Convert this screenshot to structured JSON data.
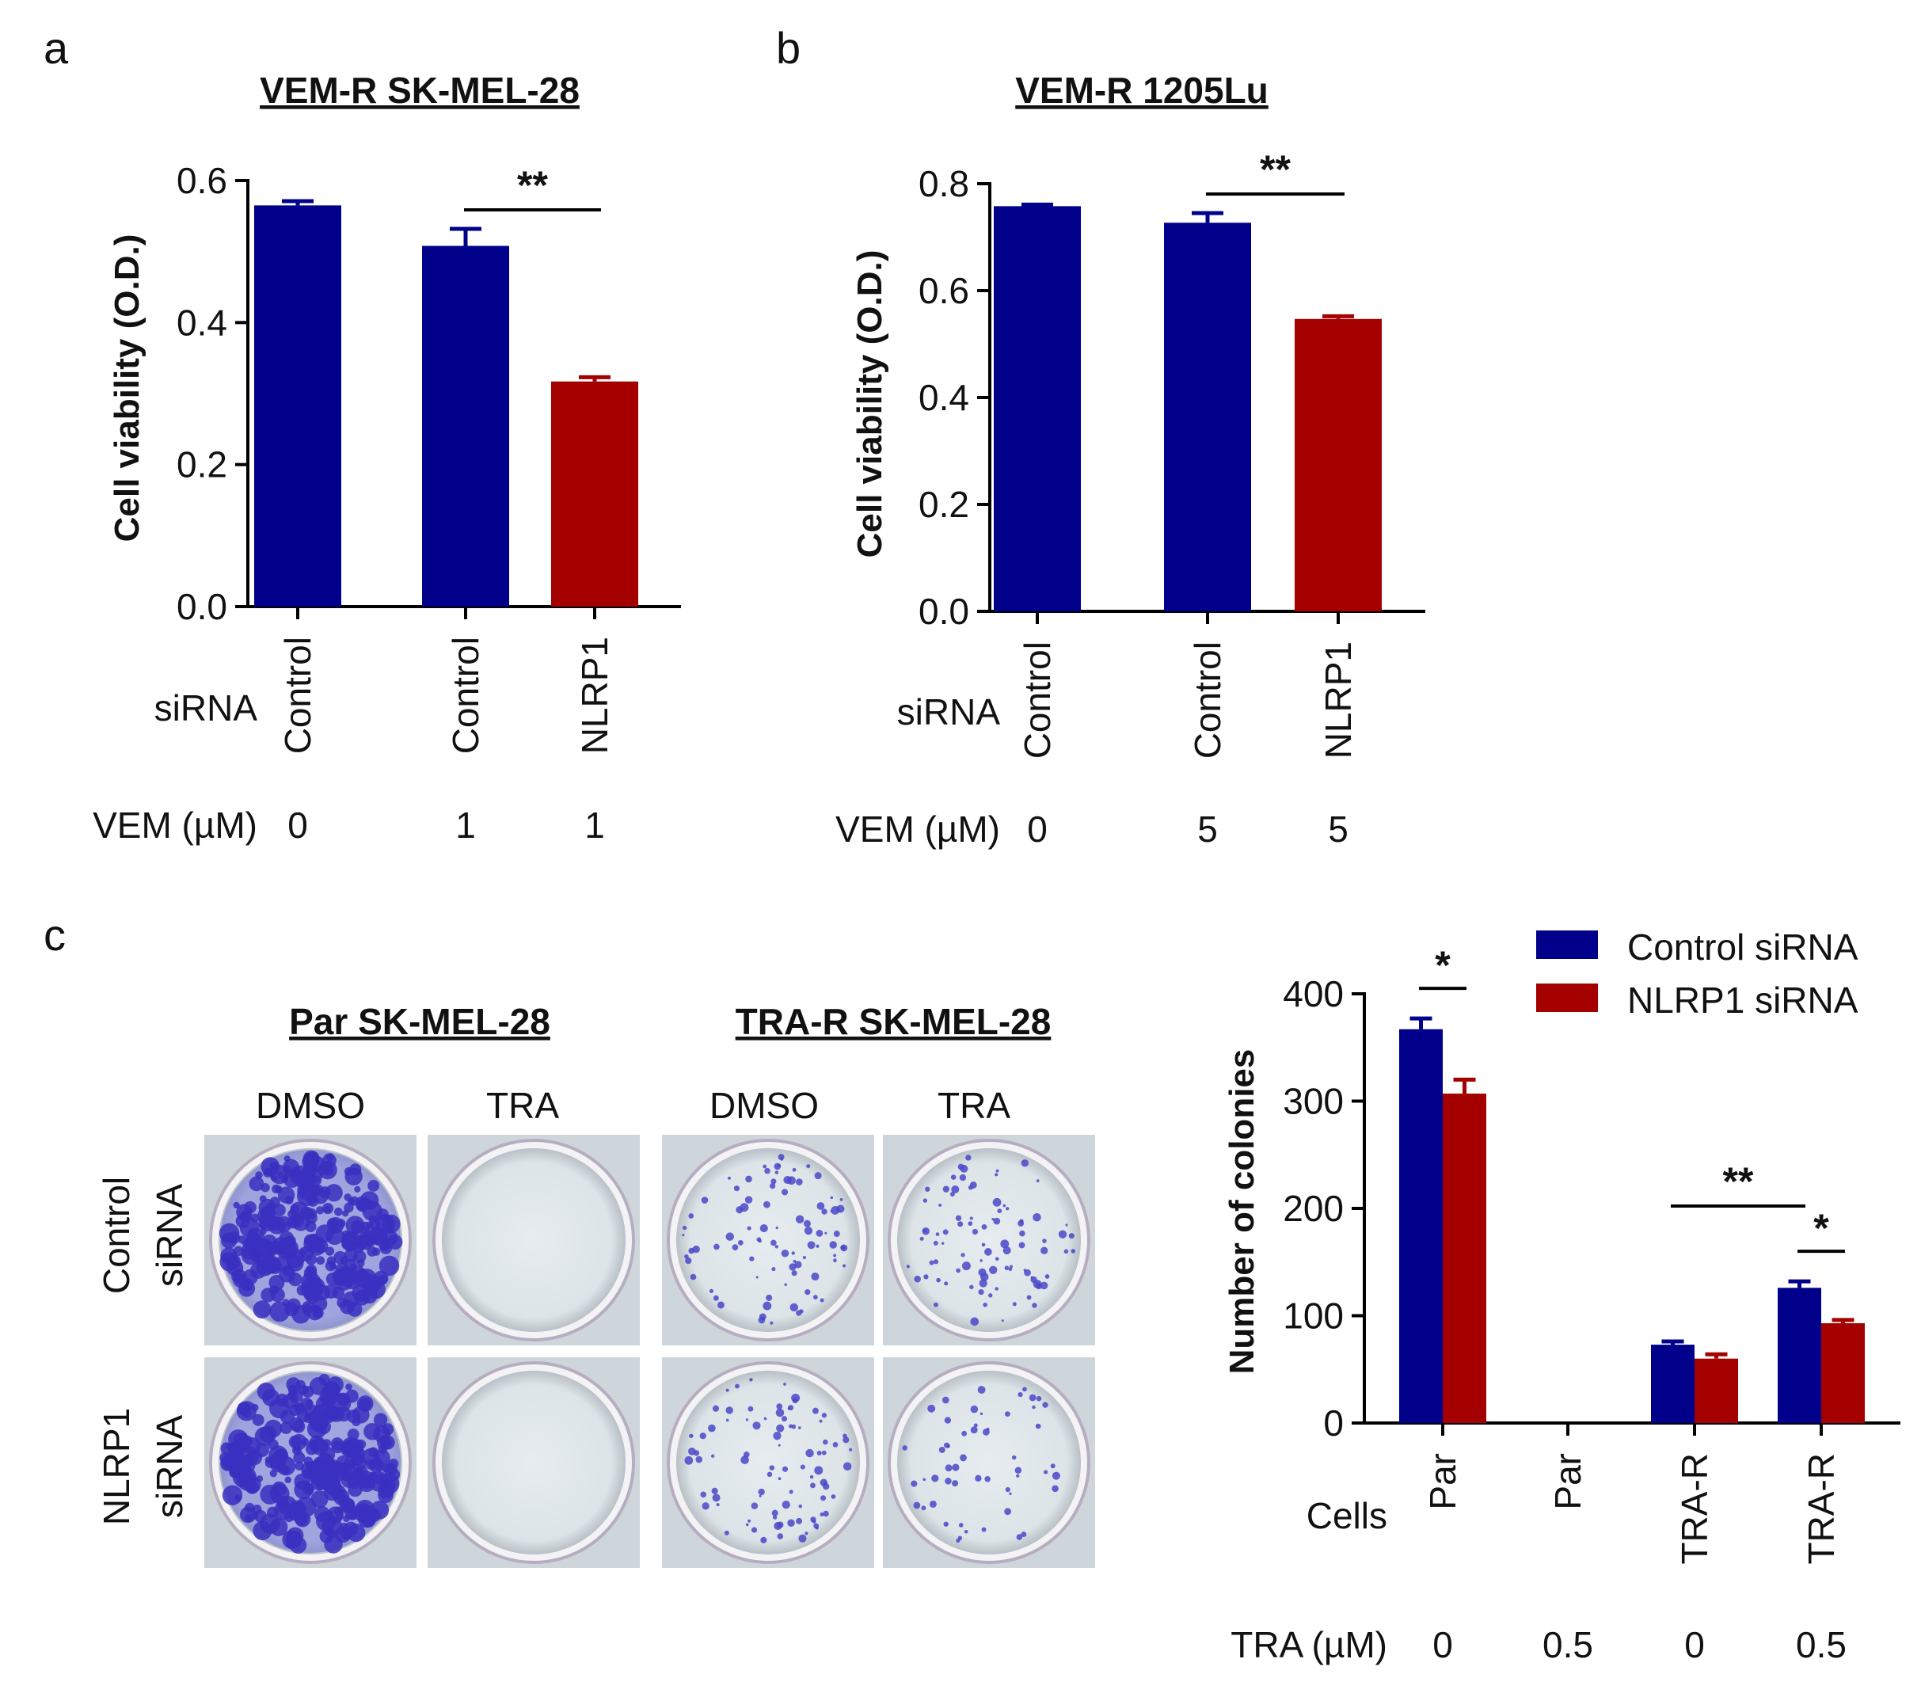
{
  "colors": {
    "blue": "#00008B",
    "red": "#A50000",
    "axis": "#000000"
  },
  "chart_data": [
    {
      "panel": "a",
      "type": "bar",
      "title": "VEM-R SK-MEL-28",
      "ylabel": "Cell viability (O.D.)",
      "ylim": [
        0,
        0.6
      ],
      "yticks": [
        "0.0",
        "0.2",
        "0.4",
        "0.6"
      ],
      "row_labels": [
        "siRNA",
        "VEM (µM)"
      ],
      "categories": [
        {
          "sirna": "Control",
          "vem": "0",
          "value": 0.565,
          "err": 0.006,
          "color": "blue"
        },
        {
          "sirna": "Control",
          "vem": "1",
          "value": 0.508,
          "err": 0.024,
          "color": "blue"
        },
        {
          "sirna": "NLRP1",
          "vem": "1",
          "value": 0.317,
          "err": 0.006,
          "color": "red"
        }
      ],
      "significance": [
        {
          "from": 1,
          "to": 2,
          "label": "**"
        }
      ]
    },
    {
      "panel": "b",
      "type": "bar",
      "title": "VEM-R 1205Lu",
      "ylabel": "Cell viability (O.D.)",
      "ylim": [
        0,
        0.8
      ],
      "yticks": [
        "0.0",
        "0.2",
        "0.4",
        "0.6",
        "0.8"
      ],
      "row_labels": [
        "siRNA",
        "VEM (µM)"
      ],
      "categories": [
        {
          "sirna": "Control",
          "vem": "0",
          "value": 0.758,
          "err": 0.003,
          "color": "blue"
        },
        {
          "sirna": "Control",
          "vem": "5",
          "value": 0.727,
          "err": 0.018,
          "color": "blue"
        },
        {
          "sirna": "NLRP1",
          "vem": "5",
          "value": 0.547,
          "err": 0.005,
          "color": "red"
        }
      ],
      "significance": [
        {
          "from": 1,
          "to": 2,
          "label": "**"
        }
      ]
    },
    {
      "panel": "c",
      "type": "bar",
      "ylabel": "Number of colonies",
      "ylim": [
        0,
        400
      ],
      "yticks": [
        "0",
        "100",
        "200",
        "300",
        "400"
      ],
      "row_labels": [
        "Cells",
        "TRA (µM)"
      ],
      "legend": [
        "Control siRNA",
        "NLRP1 siRNA"
      ],
      "legend_position": "top-right",
      "groups": [
        {
          "cells": "Par",
          "tra": "0",
          "control": 367,
          "control_err": 10,
          "nlrp1": 307,
          "nlrp1_err": 13
        },
        {
          "cells": "Par",
          "tra": "0.5",
          "control": 0,
          "control_err": 0,
          "nlrp1": 0,
          "nlrp1_err": 0
        },
        {
          "cells": "TRA-R",
          "tra": "0",
          "control": 73,
          "control_err": 3,
          "nlrp1": 60,
          "nlrp1_err": 4
        },
        {
          "cells": "TRA-R",
          "tra": "0.5",
          "control": 126,
          "control_err": 6,
          "nlrp1": 93,
          "nlrp1_err": 3
        }
      ],
      "significance": [
        {
          "type": "within",
          "group": 0,
          "label": "*"
        },
        {
          "type": "between",
          "from": 2,
          "to": 3,
          "label": "**"
        },
        {
          "type": "within",
          "group": 3,
          "label": "*"
        }
      ]
    }
  ],
  "panels": {
    "a": "a",
    "b": "b",
    "c": "c"
  },
  "plates": {
    "groups": [
      "Par SK-MEL-28",
      "TRA-R SK-MEL-28"
    ],
    "columns": [
      "DMSO",
      "TRA",
      "DMSO",
      "TRA"
    ],
    "rows": [
      [
        "Control",
        "siRNA"
      ],
      [
        "NLRP1",
        "siRNA"
      ]
    ],
    "density": [
      [
        3,
        0,
        1,
        1
      ],
      [
        3,
        0,
        1,
        0.6
      ]
    ]
  }
}
